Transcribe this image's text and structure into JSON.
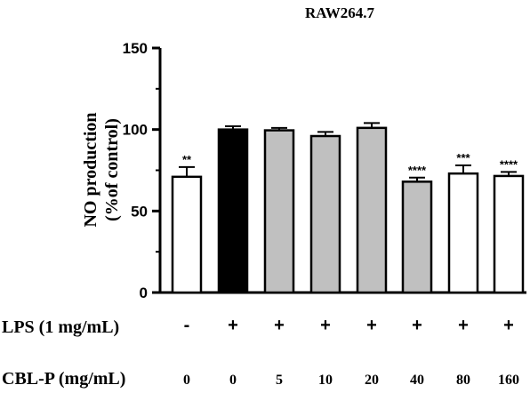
{
  "chart_data": {
    "type": "bar",
    "title": "RAW264.7",
    "ylabel_line1": "NO production",
    "ylabel_line2": "(%of control)",
    "ylim": [
      0,
      150
    ],
    "yticks": [
      "0",
      "50",
      "100",
      "150"
    ],
    "grid": false,
    "legend": "none",
    "categories": [
      "0",
      "0",
      "5",
      "10",
      "20",
      "40",
      "80",
      "160"
    ],
    "values": [
      71,
      100,
      99.5,
      96,
      101,
      68,
      73,
      71.5
    ],
    "errors": [
      6,
      2,
      1.5,
      2.5,
      3,
      2.5,
      5,
      2.5
    ],
    "significance": [
      "**",
      "",
      "",
      "",
      "",
      "****",
      "***",
      "****"
    ],
    "bar_fills": [
      "#ffffff",
      "#000000",
      "#c0c0c0",
      "#c0c0c0",
      "#c0c0c0",
      "#c0c0c0",
      "#ffffff",
      "#ffffff"
    ],
    "rows": [
      {
        "label": "LPS  (1 mg/mL)",
        "values": [
          "-",
          "+",
          "+",
          "+",
          "+",
          "+",
          "+",
          "+"
        ]
      },
      {
        "label": "CBL-P  (mg/mL)",
        "values": [
          "0",
          "0",
          "5",
          "10",
          "20",
          "40",
          "80",
          "160"
        ]
      }
    ]
  }
}
